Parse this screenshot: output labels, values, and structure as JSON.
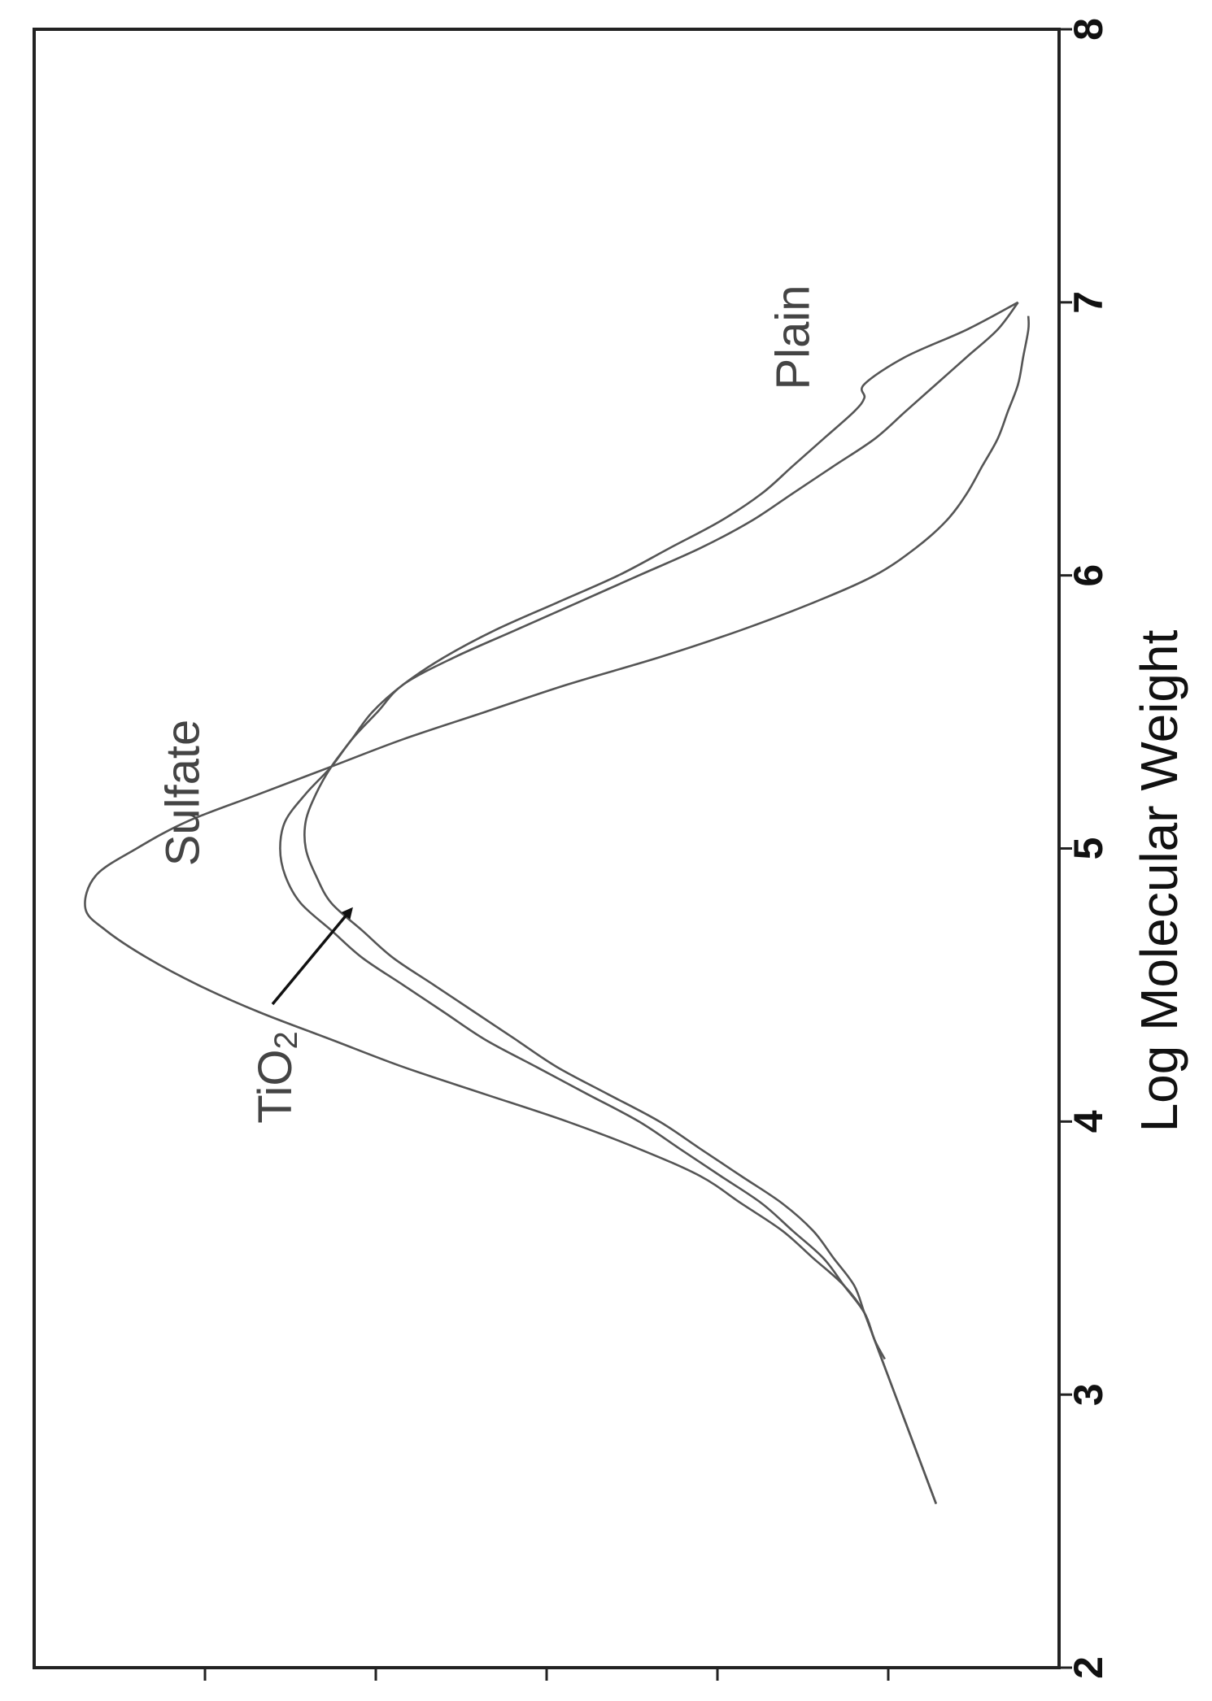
{
  "chart_data": {
    "type": "line",
    "title": "",
    "xlabel": "Log Molecular Weight",
    "ylabel": "",
    "xlim": [
      2,
      8
    ],
    "ylim": [
      0,
      1
    ],
    "x_ticks": [
      "2",
      "3",
      "4",
      "5",
      "6",
      "7",
      "8"
    ],
    "y_tick_count": 5,
    "grid": false,
    "legend": "none (curves labeled directly)",
    "colors": {
      "curves": "#555555",
      "frame": "#222222",
      "labels": "#444444"
    },
    "series": [
      {
        "name": "Sulfate",
        "x": [
          3.13,
          3.2,
          3.3,
          3.4,
          3.5,
          3.6,
          3.7,
          3.8,
          3.9,
          4.0,
          4.1,
          4.2,
          4.3,
          4.4,
          4.5,
          4.6,
          4.7,
          4.78,
          4.9,
          5.0,
          5.1,
          5.2,
          5.3,
          5.4,
          5.5,
          5.6,
          5.7,
          5.8,
          5.9,
          6.0,
          6.1,
          6.2,
          6.3,
          6.4,
          6.5,
          6.6,
          6.7,
          6.8,
          6.9,
          6.95
        ],
        "y": [
          0.17,
          0.18,
          0.19,
          0.21,
          0.24,
          0.27,
          0.31,
          0.35,
          0.41,
          0.48,
          0.56,
          0.64,
          0.71,
          0.78,
          0.84,
          0.89,
          0.93,
          0.95,
          0.94,
          0.9,
          0.85,
          0.78,
          0.71,
          0.64,
          0.56,
          0.48,
          0.39,
          0.31,
          0.24,
          0.18,
          0.14,
          0.11,
          0.09,
          0.075,
          0.06,
          0.05,
          0.04,
          0.035,
          0.03,
          0.03
        ]
      },
      {
        "name": "TiO2",
        "x": [
          2.6,
          2.8,
          3.0,
          3.2,
          3.3,
          3.4,
          3.5,
          3.6,
          3.7,
          3.8,
          3.9,
          4.0,
          4.1,
          4.2,
          4.3,
          4.4,
          4.5,
          4.6,
          4.7,
          4.8,
          4.9,
          5.0,
          5.1,
          5.2,
          5.3,
          5.4,
          5.5,
          5.6,
          5.7,
          5.8,
          5.9,
          6.0,
          6.1,
          6.2,
          6.3,
          6.4,
          6.5,
          6.6,
          6.7,
          6.8,
          6.9,
          7.0
        ],
        "y": [
          0.12,
          0.14,
          0.16,
          0.18,
          0.19,
          0.21,
          0.23,
          0.26,
          0.29,
          0.33,
          0.37,
          0.41,
          0.46,
          0.51,
          0.56,
          0.6,
          0.64,
          0.68,
          0.71,
          0.74,
          0.755,
          0.76,
          0.755,
          0.735,
          0.71,
          0.69,
          0.665,
          0.64,
          0.59,
          0.53,
          0.47,
          0.41,
          0.35,
          0.3,
          0.26,
          0.22,
          0.18,
          0.15,
          0.12,
          0.09,
          0.06,
          0.04
        ]
      },
      {
        "name": "Plain",
        "x": [
          2.6,
          2.8,
          3.0,
          3.2,
          3.3,
          3.4,
          3.5,
          3.6,
          3.7,
          3.8,
          3.9,
          4.0,
          4.1,
          4.2,
          4.3,
          4.4,
          4.5,
          4.6,
          4.7,
          4.8,
          4.9,
          5.0,
          5.1,
          5.2,
          5.3,
          5.4,
          5.5,
          5.6,
          5.7,
          5.8,
          5.9,
          6.0,
          6.1,
          6.2,
          6.3,
          6.4,
          6.5,
          6.6,
          6.65,
          6.7,
          6.8,
          6.9,
          7.0
        ],
        "y": [
          0.12,
          0.14,
          0.16,
          0.18,
          0.19,
          0.2,
          0.22,
          0.24,
          0.27,
          0.31,
          0.35,
          0.39,
          0.44,
          0.49,
          0.53,
          0.57,
          0.61,
          0.65,
          0.68,
          0.71,
          0.725,
          0.735,
          0.735,
          0.725,
          0.71,
          0.69,
          0.67,
          0.64,
          0.6,
          0.55,
          0.49,
          0.43,
          0.38,
          0.33,
          0.29,
          0.26,
          0.23,
          0.2,
          0.19,
          0.19,
          0.15,
          0.09,
          0.04
        ]
      }
    ],
    "annotations": [
      {
        "text": "Sulfate",
        "series": "Sulfate"
      },
      {
        "text": "TiO",
        "subscript": "2",
        "series": "TiO2",
        "arrow": true
      },
      {
        "text": "Plain",
        "series": "Plain"
      }
    ]
  }
}
